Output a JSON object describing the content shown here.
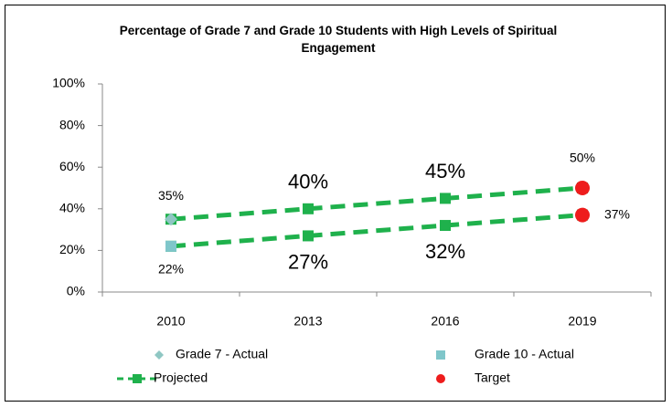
{
  "chart_data": {
    "type": "line",
    "title": "Percentage of  Grade 7 and Grade 10 Students with High Levels of Spiritual Engagement",
    "categories": [
      "2010",
      "2013",
      "2016",
      "2019"
    ],
    "ylim": [
      0,
      100
    ],
    "yticks": [
      {
        "value": 0,
        "label": "0%"
      },
      {
        "value": 20,
        "label": "20%"
      },
      {
        "value": 40,
        "label": "40%"
      },
      {
        "value": 60,
        "label": "60%"
      },
      {
        "value": 80,
        "label": "80%"
      },
      {
        "value": 100,
        "label": "100%"
      }
    ],
    "grid": false,
    "legend": "bottom",
    "series": [
      {
        "name": "Grade 7 - Actual",
        "color": "#8fc7c3",
        "marker": "diamond",
        "values": [
          35,
          null,
          null,
          null
        ],
        "value_labels": [
          "35%",
          null,
          null,
          null
        ]
      },
      {
        "name": "Grade 10 - Actual",
        "color": "#7fc6ca",
        "marker": "square",
        "values": [
          22,
          null,
          null,
          null
        ],
        "value_labels": [
          "22%",
          null,
          null,
          null
        ]
      },
      {
        "name": "Projected",
        "color": "#1fb14c",
        "marker": "square",
        "line": "dashed",
        "values": [
          35,
          40,
          45,
          50
        ],
        "value_labels": [
          null,
          "40%",
          "45%",
          null
        ]
      },
      {
        "color": "#1fb14c",
        "marker": "square",
        "line": "dashed",
        "values": [
          22,
          27,
          32,
          37
        ],
        "value_labels": [
          null,
          "27%",
          "32%",
          null
        ]
      },
      {
        "name": "Target",
        "color": "#ee1c1c",
        "marker": "circle",
        "values": [
          null,
          null,
          null,
          50
        ],
        "value_labels": [
          null,
          null,
          null,
          "50%"
        ]
      },
      {
        "color": "#ee1c1c",
        "marker": "circle",
        "values": [
          null,
          null,
          null,
          37
        ],
        "value_labels": [
          null,
          null,
          null,
          "37%"
        ]
      }
    ]
  }
}
